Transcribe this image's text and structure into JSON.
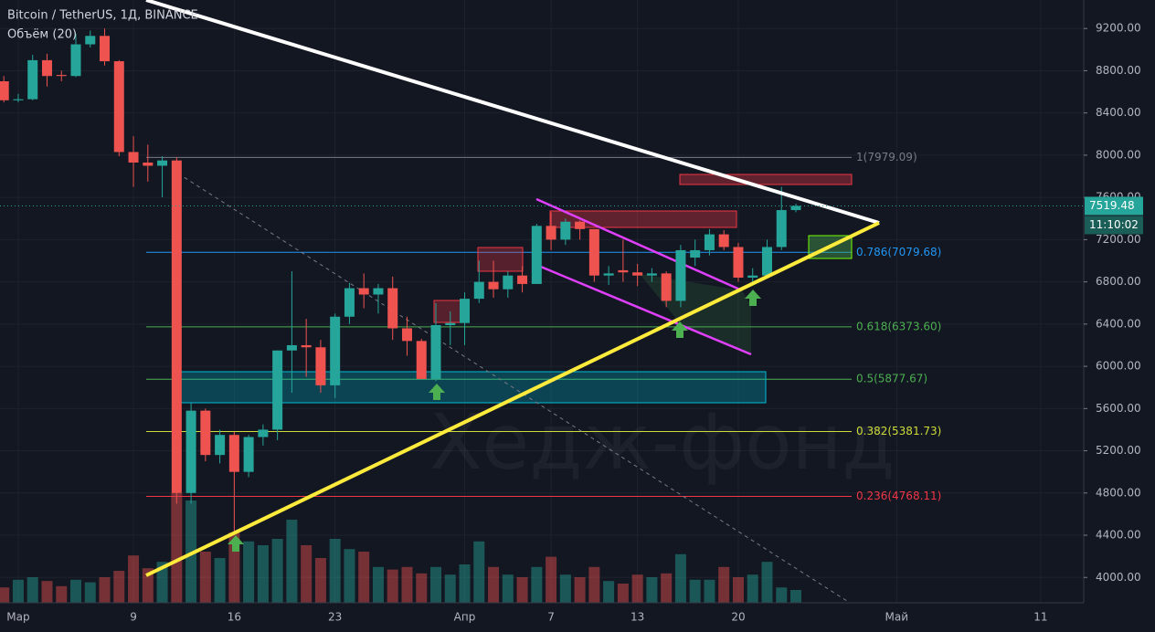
{
  "chart_data": {
    "type": "candlestick",
    "title": "Bitcoin / TetherUS, 1Д, BINANCE",
    "subtitle": "Объём (20)",
    "watermark": "Хедж-фонд",
    "up_color": "#26a69a",
    "down_color": "#ef5350",
    "categories": [
      null,
      "Мар",
      null,
      null,
      null,
      null,
      null,
      null,
      null,
      "9",
      null,
      null,
      null,
      null,
      null,
      null,
      "16",
      null,
      null,
      null,
      null,
      null,
      null,
      "23",
      null,
      null,
      null,
      null,
      null,
      null,
      null,
      null,
      "Апр",
      null,
      null,
      null,
      null,
      null,
      "7",
      null,
      null,
      null,
      null,
      null,
      "13",
      null,
      null,
      null,
      null,
      null,
      null,
      "20",
      null,
      null,
      null,
      null,
      null,
      null,
      null,
      null,
      null,
      null,
      "Май",
      null,
      null,
      null,
      null,
      null,
      null,
      null,
      null,
      null,
      "11",
      null,
      null
    ],
    "open": [
      8700,
      8520,
      8530,
      8900,
      8760,
      8750,
      9050,
      9130,
      8890,
      8030,
      7930,
      7900,
      7950,
      4800,
      5580,
      5160,
      5350,
      5000,
      5330,
      5400,
      6150,
      6200,
      6180,
      5820,
      6470,
      6740,
      6680,
      6740,
      6360,
      6240,
      5880,
      6390,
      6410,
      6640,
      6800,
      6730,
      6860,
      6780,
      7330,
      7200,
      7370,
      7300,
      6860,
      6910,
      6890,
      6860,
      6880,
      6620,
      7030,
      7100,
      7250,
      7130,
      6840,
      6860,
      7130,
      7480,
      null,
      null,
      null,
      null,
      null,
      null,
      null,
      null,
      null,
      null,
      null,
      null,
      null,
      null,
      null,
      null,
      null,
      null,
      null
    ],
    "high": [
      8750,
      8580,
      8950,
      8960,
      8800,
      9150,
      9180,
      9200,
      8900,
      8180,
      8100,
      7990,
      7980,
      5650,
      5600,
      5400,
      5380,
      5350,
      5450,
      6150,
      6900,
      6450,
      6250,
      6500,
      6790,
      6880,
      6780,
      6850,
      6470,
      6260,
      6600,
      6520,
      6700,
      7000,
      7000,
      6900,
      6950,
      7350,
      7460,
      7400,
      7380,
      7300,
      6950,
      7200,
      6970,
      6930,
      6900,
      7150,
      7200,
      7300,
      7290,
      7170,
      6930,
      7200,
      7700,
      7540,
      null,
      null,
      null,
      null,
      null,
      null,
      null,
      null,
      null,
      null,
      null,
      null,
      null,
      null,
      null,
      null,
      null,
      null,
      null
    ],
    "low": [
      8500,
      8500,
      8520,
      8650,
      8700,
      8740,
      9020,
      8850,
      7990,
      7700,
      7750,
      7600,
      4700,
      4700,
      5100,
      5080,
      4440,
      4950,
      5250,
      5300,
      5750,
      5900,
      5750,
      5700,
      6400,
      6550,
      6500,
      6250,
      6100,
      5880,
      5860,
      6200,
      6200,
      6600,
      6650,
      6650,
      6700,
      6780,
      7100,
      7150,
      7200,
      6800,
      6770,
      6800,
      6760,
      6800,
      6560,
      6560,
      6950,
      7050,
      7100,
      6800,
      6790,
      6840,
      7100,
      7460,
      null,
      null,
      null,
      null,
      null,
      null,
      null,
      null,
      null,
      null,
      null,
      null,
      null,
      null,
      null,
      null,
      null,
      null,
      null
    ],
    "close": [
      8520,
      8530,
      8900,
      8750,
      8750,
      9050,
      9130,
      8890,
      8030,
      7930,
      7900,
      7950,
      4800,
      5580,
      5160,
      5350,
      5000,
      5330,
      5400,
      6150,
      6200,
      6180,
      5820,
      6470,
      6740,
      6680,
      6740,
      6360,
      6240,
      5880,
      6390,
      6410,
      6640,
      6800,
      6730,
      6860,
      6780,
      7330,
      7200,
      7370,
      7300,
      6860,
      6880,
      6890,
      6860,
      6880,
      6620,
      7100,
      7100,
      7250,
      7130,
      6840,
      6860,
      7130,
      7480,
      7520,
      null,
      null,
      null,
      null,
      null,
      null,
      null,
      null,
      null,
      null,
      null,
      null,
      null,
      null,
      null,
      null,
      null,
      null,
      null
    ],
    "volume": [
      12,
      18,
      20,
      17,
      13,
      18,
      16,
      20,
      25,
      37,
      27,
      32,
      86,
      80,
      40,
      35,
      55,
      48,
      45,
      50,
      65,
      45,
      35,
      50,
      42,
      40,
      28,
      26,
      28,
      23,
      28,
      22,
      30,
      48,
      28,
      22,
      20,
      28,
      36,
      22,
      20,
      28,
      17,
      15,
      22,
      20,
      23,
      38,
      18,
      18,
      28,
      20,
      22,
      32,
      12,
      10,
      null,
      null,
      null,
      null,
      null,
      null,
      null,
      null,
      null,
      null,
      null,
      null,
      null,
      null,
      null,
      null,
      null,
      null,
      null
    ],
    "volume_ylim": [
      0,
      100
    ],
    "ylim": [
      3760,
      9470
    ],
    "yticks": [
      {
        "value": 4000,
        "label": "4000.00"
      },
      {
        "value": 4400,
        "label": "4400.00"
      },
      {
        "value": 4800,
        "label": "4800.00"
      },
      {
        "value": 5200,
        "label": "5200.00"
      },
      {
        "value": 5600,
        "label": "5600.00"
      },
      {
        "value": 6000,
        "label": "6000.00"
      },
      {
        "value": 6400,
        "label": "6400.00"
      },
      {
        "value": 6800,
        "label": "6800.00"
      },
      {
        "value": 7200,
        "label": "7200.00"
      },
      {
        "value": 7600,
        "label": "7600.00"
      },
      {
        "value": 8000,
        "label": "8000.00"
      },
      {
        "value": 8400,
        "label": "8400.00"
      },
      {
        "value": 8800,
        "label": "8800.00"
      },
      {
        "value": 9200,
        "label": "9200.00"
      }
    ],
    "fib_levels": [
      {
        "value": 7979.09,
        "label": "1(7979.09)",
        "color": "#787b86"
      },
      {
        "value": 7079.68,
        "label": "0.786(7079.68)",
        "color": "#2196f3"
      },
      {
        "value": 6373.6,
        "label": "0.618(6373.60)",
        "color": "#4caf50"
      },
      {
        "value": 5877.67,
        "label": "0.5(5877.67)",
        "color": "#4caf50"
      },
      {
        "value": 5381.73,
        "label": "0.382(5381.73)",
        "color": "#cddc39"
      },
      {
        "value": 4768.11,
        "label": "0.236(4768.11)",
        "color": "#f23645"
      }
    ],
    "last_price": 7519.48,
    "countdown": "11:10:02"
  }
}
